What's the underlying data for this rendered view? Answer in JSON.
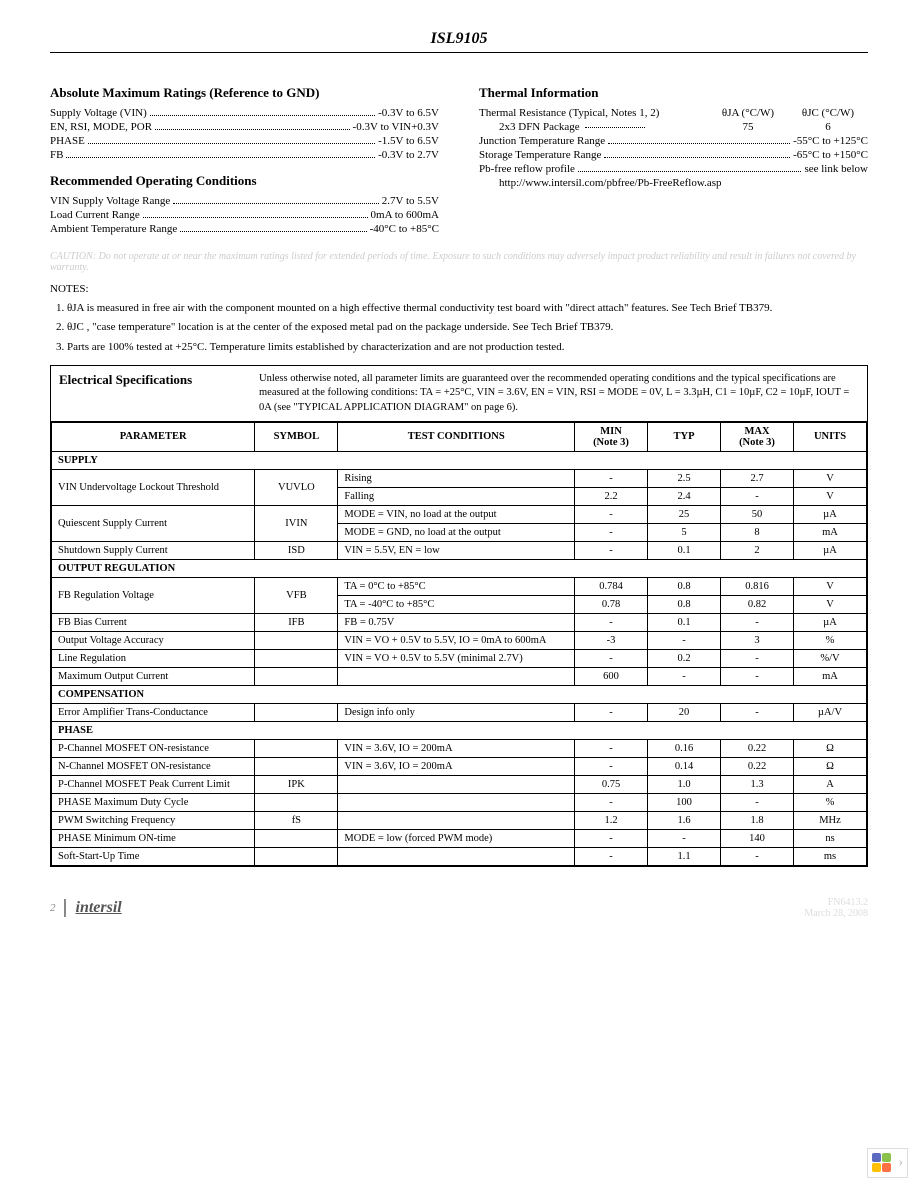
{
  "doc_title": "ISL9105",
  "abs_max": {
    "title": "Absolute Maximum Ratings (Reference to GND)",
    "rows": [
      {
        "label": "Supply Voltage (VIN)",
        "value": "-0.3V to 6.5V"
      },
      {
        "label": "EN, RSI, MODE, POR",
        "value": "-0.3V to VIN+0.3V"
      },
      {
        "label": "PHASE",
        "value": "-1.5V to 6.5V"
      },
      {
        "label": "FB",
        "value": "-0.3V to 2.7V"
      }
    ]
  },
  "rec_op": {
    "title": "Recommended Operating Conditions",
    "rows": [
      {
        "label": "VIN Supply Voltage Range",
        "value": "2.7V to 5.5V"
      },
      {
        "label": "Load Current Range",
        "value": "0mA to 600mA"
      },
      {
        "label": "Ambient Temperature Range",
        "value": "-40°C to +85°C"
      }
    ]
  },
  "thermal": {
    "title": "Thermal Information",
    "resistance_label": "Thermal Resistance (Typical, Notes 1, 2)",
    "theta_ja": "θJA  (°C/W)",
    "theta_jc": "θJC  (°C/W)",
    "package_label": "2x3 DFN Package",
    "theta_ja_val": "75",
    "theta_jc_val": "6",
    "rows": [
      {
        "label": "Junction Temperature Range",
        "value": "-55°C to +125°C"
      },
      {
        "label": "Storage Temperature Range",
        "value": "-65°C to +150°C"
      },
      {
        "label": "Pb-free reflow profile",
        "value": "see link below"
      }
    ],
    "link": "http://www.intersil.com/pbfree/Pb-FreeReflow.asp"
  },
  "caution": "CAUTION: Do not operate at or near the maximum ratings listed for extended periods of time. Exposure to such conditions may adversely impact product reliability and result in failures not covered by warranty.",
  "notes_label": "NOTES:",
  "notes": [
    "θJA  is measured in free air with the component mounted on a high effective thermal conductivity test board with \"direct attach\" features. See Tech Brief TB379.",
    "θJC , \"case temperature\" location is at the center of the exposed metal pad on the package underside. See Tech Brief TB379.",
    "Parts are 100% tested at +25°C. Temperature limits established by characterization and are not production tested."
  ],
  "espec": {
    "title": "Electrical Specifications",
    "note": "Unless otherwise noted, all parameter limits are guaranteed over the recommended operating conditions and the typical specifications are measured at the following conditions: TA = +25°C, VIN = 3.6V, EN = VIN, RSI = MODE = 0V, L = 3.3µH, C1 = 10µF, C2 = 10µF, IOUT = 0A (see \"TYPICAL APPLICATION DIAGRAM\" on page 6).",
    "columns": [
      "PARAMETER",
      "SYMBOL",
      "TEST CONDITIONS",
      "MIN\n(Note 3)",
      "TYP",
      "MAX\n(Note 3)",
      "UNITS"
    ],
    "sections": [
      {
        "name": "SUPPLY",
        "rows": [
          {
            "param": "VIN Undervoltage Lockout Threshold",
            "symbol": "VUVLO",
            "cond": "Rising",
            "min": "-",
            "typ": "2.5",
            "max": "2.7",
            "units": "V",
            "rowspan": 2
          },
          {
            "cond": "Falling",
            "min": "2.2",
            "typ": "2.4",
            "max": "-",
            "units": "V"
          },
          {
            "param": "Quiescent Supply Current",
            "symbol": "IVIN",
            "cond": "MODE = VIN, no load at the output",
            "min": "-",
            "typ": "25",
            "max": "50",
            "units": "µA",
            "rowspan": 2
          },
          {
            "cond": "MODE = GND, no load at the output",
            "min": "-",
            "typ": "5",
            "max": "8",
            "units": "mA"
          },
          {
            "param": "Shutdown Supply Current",
            "symbol": "ISD",
            "cond": "VIN = 5.5V, EN = low",
            "min": "-",
            "typ": "0.1",
            "max": "2",
            "units": "µA"
          }
        ]
      },
      {
        "name": "OUTPUT REGULATION",
        "rows": [
          {
            "param": "FB Regulation Voltage",
            "symbol": "VFB",
            "cond": "TA = 0°C to +85°C",
            "min": "0.784",
            "typ": "0.8",
            "max": "0.816",
            "units": "V",
            "rowspan": 2
          },
          {
            "cond": "TA = -40°C to +85°C",
            "min": "0.78",
            "typ": "0.8",
            "max": "0.82",
            "units": "V"
          },
          {
            "param": "FB Bias Current",
            "symbol": "IFB",
            "cond": "FB = 0.75V",
            "min": "-",
            "typ": "0.1",
            "max": "-",
            "units": "µA"
          },
          {
            "param": "Output Voltage Accuracy",
            "symbol": "",
            "cond": "VIN = VO + 0.5V to 5.5V, IO = 0mA to 600mA",
            "min": "-3",
            "typ": "-",
            "max": "3",
            "units": "%"
          },
          {
            "param": "Line Regulation",
            "symbol": "",
            "cond": "VIN = VO + 0.5V to 5.5V (minimal 2.7V)",
            "min": "-",
            "typ": "0.2",
            "max": "-",
            "units": "%/V"
          },
          {
            "param": "Maximum Output Current",
            "symbol": "",
            "cond": "",
            "min": "600",
            "typ": "-",
            "max": "-",
            "units": "mA"
          }
        ]
      },
      {
        "name": "COMPENSATION",
        "rows": [
          {
            "param": "Error Amplifier Trans-Conductance",
            "symbol": "",
            "cond": "Design info only",
            "min": "-",
            "typ": "20",
            "max": "-",
            "units": "µA/V"
          }
        ]
      },
      {
        "name": "PHASE",
        "rows": [
          {
            "param": "P-Channel MOSFET ON-resistance",
            "symbol": "",
            "cond": "VIN = 3.6V, IO = 200mA",
            "min": "-",
            "typ": "0.16",
            "max": "0.22",
            "units": "Ω"
          },
          {
            "param": "N-Channel MOSFET ON-resistance",
            "symbol": "",
            "cond": "VIN = 3.6V, IO = 200mA",
            "min": "-",
            "typ": "0.14",
            "max": "0.22",
            "units": "Ω"
          },
          {
            "param": "P-Channel MOSFET Peak Current Limit",
            "symbol": "IPK",
            "cond": "",
            "min": "0.75",
            "typ": "1.0",
            "max": "1.3",
            "units": "A"
          },
          {
            "param": "PHASE Maximum Duty Cycle",
            "symbol": "",
            "cond": "",
            "min": "-",
            "typ": "100",
            "max": "-",
            "units": "%"
          },
          {
            "param": "PWM Switching Frequency",
            "symbol": "fS",
            "cond": "",
            "min": "1.2",
            "typ": "1.6",
            "max": "1.8",
            "units": "MHz"
          },
          {
            "param": "PHASE Minimum ON-time",
            "symbol": "",
            "cond": "MODE = low (forced PWM mode)",
            "min": "-",
            "typ": "-",
            "max": "140",
            "units": "ns"
          },
          {
            "param": "Soft-Start-Up Time",
            "symbol": "",
            "cond": "",
            "min": "-",
            "typ": "1.1",
            "max": "-",
            "units": "ms"
          }
        ]
      }
    ]
  },
  "footer": {
    "page": "2",
    "logo": "intersil",
    "doc_code": "FN6413.2",
    "date": "March 28, 2008"
  },
  "widget": {
    "colors": [
      "#8bc34a",
      "#ffc107",
      "#ff7043",
      "#5c6bc0"
    ]
  }
}
